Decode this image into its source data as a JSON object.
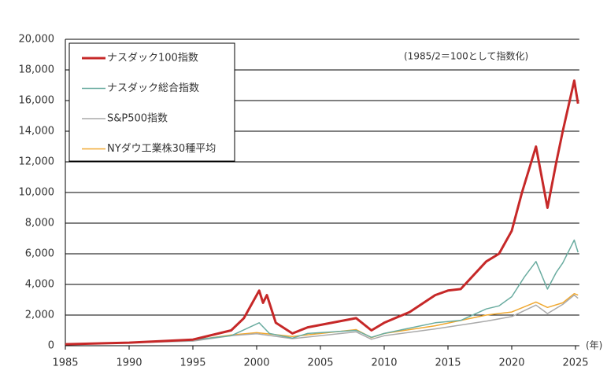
{
  "chart_data": {
    "type": "line",
    "annotation": "(1985/2＝100として指数化)",
    "x_label": "(年)",
    "xlim": [
      1985,
      2025.3
    ],
    "xticks": [
      1985,
      1990,
      1995,
      2000,
      2005,
      2010,
      2015,
      2020,
      2025
    ],
    "ylim": [
      0,
      20000
    ],
    "yticks": [
      0,
      {
        "value": 2000,
        "label": "2,000"
      },
      {
        "value": 4000,
        "label": "4,000"
      },
      {
        "value": 6000,
        "label": "6,000"
      },
      {
        "value": 8000,
        "label": "8,000"
      },
      {
        "value": 10000,
        "label": "10,000"
      },
      {
        "value": 12000,
        "label": "12,000"
      },
      {
        "value": 14000,
        "label": "14,000"
      },
      {
        "value": 16000,
        "label": "16,000"
      },
      {
        "value": 18000,
        "label": "18,000"
      },
      {
        "value": 20000,
        "label": "20,000"
      }
    ],
    "grid": true,
    "legend": "upper left",
    "series": [
      {
        "name": "ナスダック100指数",
        "color": "#c62828",
        "line_width": 3,
        "x": [
          1985,
          1990,
          1995,
          1998,
          1999,
          2000.2,
          2000.5,
          2000.8,
          2001.5,
          2002.8,
          2004,
          2007.8,
          2009,
          2010,
          2012,
          2014,
          2015,
          2016,
          2018,
          2019,
          2020,
          2020.8,
          2021.9,
          2022.8,
          2023.5,
          2024,
          2024.9,
          2025.2
        ],
        "values": [
          100,
          200,
          400,
          1000,
          1800,
          3600,
          2800,
          3300,
          1500,
          800,
          1200,
          1800,
          1000,
          1500,
          2200,
          3300,
          3600,
          3700,
          5500,
          6000,
          7500,
          10000,
          13000,
          9000,
          12000,
          14000,
          17300,
          15800
        ]
      },
      {
        "name": "ナスダック総合指数",
        "color": "#6aaca0",
        "line_width": 1.5,
        "x": [
          1985,
          1990,
          1995,
          1998,
          2000.2,
          2001,
          2002.8,
          2004,
          2007.8,
          2009,
          2010,
          2014,
          2016,
          2018,
          2019,
          2020,
          2021,
          2021.9,
          2022.8,
          2023.5,
          2024,
          2024.9,
          2025.2
        ],
        "values": [
          100,
          180,
          380,
          650,
          1500,
          800,
          500,
          800,
          1000,
          550,
          800,
          1500,
          1650,
          2400,
          2600,
          3200,
          4500,
          5500,
          3700,
          4800,
          5400,
          6900,
          6100
        ]
      },
      {
        "name": "S&P500指数",
        "color": "#aaaaaa",
        "line_width": 1.5,
        "x": [
          1985,
          1990,
          1995,
          1998,
          2000,
          2002.8,
          2007.8,
          2009,
          2010,
          2014,
          2018,
          2020,
          2021.9,
          2022.8,
          2024,
          2024.9,
          2025.2
        ],
        "values": [
          100,
          190,
          300,
          650,
          780,
          460,
          900,
          420,
          650,
          1100,
          1600,
          1900,
          2650,
          2100,
          2700,
          3300,
          3100
        ]
      },
      {
        "name": "NYダウ工業株30種平均",
        "color": "#f0a830",
        "line_width": 1.5,
        "x": [
          1985,
          1990,
          1995,
          1998,
          2000,
          2002.8,
          2007.8,
          2009,
          2010,
          2014,
          2018,
          2020,
          2021.9,
          2022.8,
          2024,
          2024.9,
          2025.2
        ],
        "values": [
          100,
          200,
          350,
          700,
          850,
          600,
          1050,
          530,
          800,
          1300,
          2000,
          2200,
          2850,
          2500,
          2800,
          3400,
          3300
        ]
      }
    ]
  }
}
